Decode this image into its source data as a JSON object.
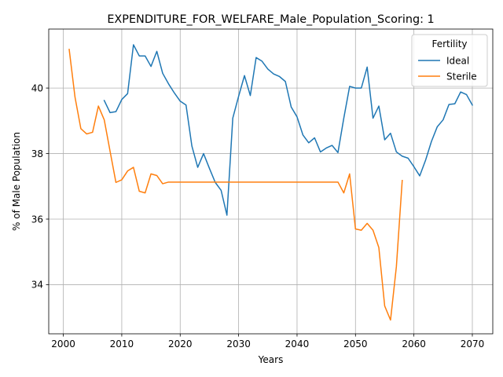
{
  "chart_data": {
    "type": "line",
    "title": "EXPENDITURE_FOR_WELFARE_Male_Population_Scoring: 1",
    "xlabel": "Years",
    "ylabel": "% of Male Population",
    "xlim": [
      1997.5,
      2073.5
    ],
    "ylim": [
      32.5,
      41.8
    ],
    "xticks": [
      2000,
      2010,
      2020,
      2030,
      2040,
      2050,
      2060,
      2070
    ],
    "yticks": [
      34,
      36,
      38,
      40
    ],
    "grid": true,
    "legend": {
      "title": "Fertility",
      "placement": "top-right"
    },
    "series": [
      {
        "name": "Ideal",
        "color": "#1f77b4",
        "x": [
          2007,
          2008,
          2009,
          2010,
          2011,
          2012,
          2013,
          2014,
          2015,
          2016,
          2017,
          2018,
          2019,
          2020,
          2021,
          2022,
          2023,
          2024,
          2025,
          2026,
          2027,
          2028,
          2029,
          2030,
          2031,
          2032,
          2033,
          2034,
          2035,
          2036,
          2037,
          2038,
          2039,
          2040,
          2041,
          2042,
          2043,
          2044,
          2045,
          2046,
          2047,
          2048,
          2049,
          2050,
          2051,
          2052,
          2053,
          2054,
          2055,
          2056,
          2057,
          2058,
          2059,
          2060,
          2061,
          2062,
          2063,
          2064,
          2065,
          2066,
          2067,
          2068,
          2069,
          2070
        ],
        "values": [
          39.62,
          39.25,
          39.28,
          39.65,
          39.83,
          41.32,
          40.98,
          40.98,
          40.66,
          41.12,
          40.45,
          40.13,
          39.85,
          39.6,
          39.48,
          38.23,
          37.58,
          38.0,
          37.55,
          37.12,
          36.88,
          36.12,
          39.08,
          39.75,
          40.38,
          39.77,
          40.93,
          40.82,
          40.58,
          40.43,
          40.35,
          40.2,
          39.42,
          39.12,
          38.57,
          38.33,
          38.48,
          38.05,
          38.17,
          38.25,
          38.03,
          39.08,
          40.05,
          40.0,
          40.0,
          40.64,
          39.08,
          39.45,
          38.42,
          38.62,
          38.05,
          37.92,
          37.86,
          37.6,
          37.32,
          37.8,
          38.37,
          38.82,
          39.03,
          39.5,
          39.52,
          39.88,
          39.8,
          39.48
        ]
      },
      {
        "name": "Sterile",
        "color": "#ff7f0e",
        "x": [
          2001,
          2002,
          2003,
          2004,
          2005,
          2006,
          2007,
          2008,
          2009,
          2010,
          2011,
          2012,
          2013,
          2014,
          2015,
          2016,
          2017,
          2018,
          2019,
          2020,
          2021,
          2022,
          2023,
          2024,
          2025,
          2026,
          2027,
          2028,
          2029,
          2030,
          2031,
          2032,
          2033,
          2034,
          2035,
          2036,
          2037,
          2038,
          2039,
          2040,
          2041,
          2042,
          2043,
          2044,
          2045,
          2046,
          2047,
          2048,
          2049,
          2050,
          2051,
          2052,
          2053,
          2054,
          2055,
          2056,
          2057,
          2058
        ],
        "values": [
          41.18,
          39.72,
          38.76,
          38.6,
          38.65,
          39.45,
          39.03,
          38.07,
          37.12,
          37.2,
          37.47,
          37.58,
          36.85,
          36.8,
          37.38,
          37.33,
          37.08,
          37.13,
          37.13,
          37.13,
          37.13,
          37.13,
          37.13,
          37.13,
          37.13,
          37.13,
          37.13,
          37.13,
          37.13,
          37.13,
          37.13,
          37.13,
          37.13,
          37.13,
          37.13,
          37.13,
          37.13,
          37.13,
          37.13,
          37.13,
          37.13,
          37.13,
          37.13,
          37.13,
          37.13,
          37.13,
          37.13,
          36.8,
          37.38,
          35.7,
          35.66,
          35.87,
          35.66,
          35.13,
          33.35,
          32.92,
          34.55,
          37.18
        ]
      }
    ]
  }
}
